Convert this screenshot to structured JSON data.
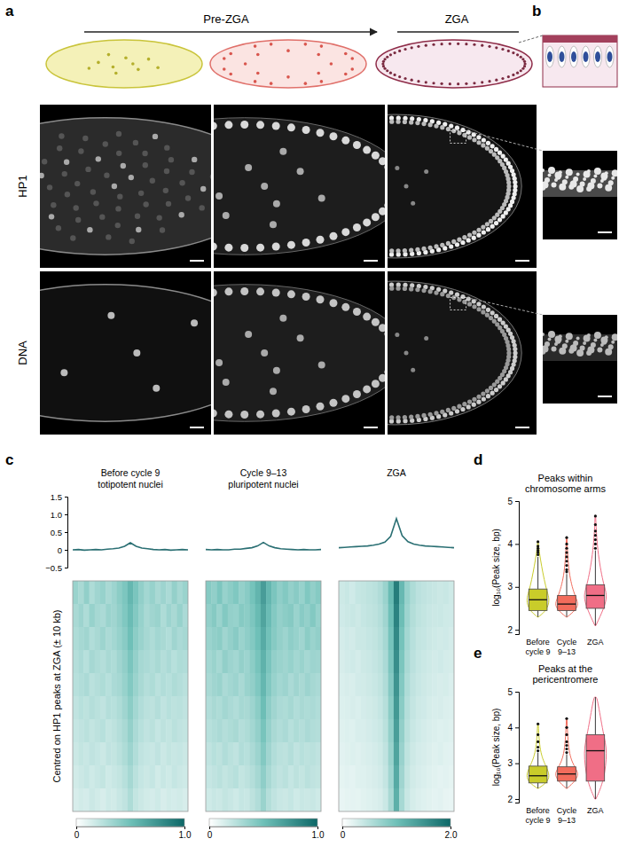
{
  "figure": {
    "panel_labels": [
      "a",
      "b",
      "c",
      "d",
      "e"
    ],
    "stages": [
      "Pre-ZGA",
      "ZGA"
    ],
    "rows": [
      "HP1",
      "DNA"
    ]
  },
  "chart_data": [
    {
      "type": "line",
      "title": "Before cycle 9",
      "subtitle": "totipotent nuclei",
      "color": "#2a6f73",
      "x": [
        -10,
        -9,
        -8,
        -7,
        -6,
        -5,
        -4,
        -3,
        -2,
        -1,
        0,
        1,
        2,
        3,
        4,
        5,
        6,
        7,
        8,
        9,
        10
      ],
      "values": [
        0.0,
        0.01,
        -0.01,
        0.0,
        0.01,
        0.0,
        0.02,
        0.03,
        0.05,
        0.1,
        0.2,
        0.1,
        0.05,
        0.03,
        0.01,
        0.0,
        0.01,
        -0.01,
        0.0,
        0.01,
        0.0
      ],
      "xlim": [
        -10,
        10
      ],
      "ylim": [
        -0.5,
        1.5
      ],
      "yticks": [
        {
          "value": -0.5,
          "label": "−0.5"
        },
        0,
        0.5,
        {
          "value": 1,
          "label": "1.0"
        },
        1.5
      ],
      "tick_labels": "y"
    },
    {
      "type": "line",
      "title": "Cycle 9–13",
      "subtitle": "pluripotent nuclei",
      "color": "#2a6f73",
      "x": [
        -10,
        -9,
        -8,
        -7,
        -6,
        -5,
        -4,
        -3,
        -2,
        -1,
        0,
        1,
        2,
        3,
        4,
        5,
        6,
        7,
        8,
        9,
        10
      ],
      "values": [
        0.01,
        0.0,
        0.01,
        0.0,
        0.0,
        0.02,
        0.02,
        0.04,
        0.06,
        0.11,
        0.21,
        0.11,
        0.06,
        0.03,
        0.02,
        0.01,
        0.0,
        0.01,
        0.0,
        0.0,
        0.01
      ],
      "xlim": [
        -10,
        10
      ],
      "ylim": [
        -0.5,
        1.5
      ],
      "tick_labels": false
    },
    {
      "type": "line",
      "title": "ZGA",
      "color": "#2a6f73",
      "x": [
        -10,
        -9,
        -8,
        -7,
        -6,
        -5,
        -4,
        -3,
        -2,
        -1,
        0,
        1,
        2,
        3,
        4,
        5,
        6,
        7,
        8,
        9,
        10
      ],
      "values": [
        0.06,
        0.07,
        0.08,
        0.09,
        0.1,
        0.11,
        0.13,
        0.16,
        0.22,
        0.38,
        0.88,
        0.4,
        0.23,
        0.16,
        0.13,
        0.11,
        0.1,
        0.09,
        0.08,
        0.07,
        0.06
      ],
      "xlim": [
        -10,
        10
      ],
      "ylim": [
        -0.5,
        1.5
      ],
      "tick_labels": false
    },
    {
      "type": "heatmap",
      "ylabel": "Centred on HP1 peaks at ZGA (± 10 kb)",
      "cells": [
        [
          0.35,
          0.3,
          0.38,
          0.28,
          0.33,
          0.36,
          0.3,
          0.34,
          0.4,
          0.45,
          0.55,
          0.46,
          0.38,
          0.32,
          0.36,
          0.3,
          0.34,
          0.29,
          0.37,
          0.31,
          0.35
        ],
        [
          0.3,
          0.34,
          0.28,
          0.36,
          0.31,
          0.29,
          0.35,
          0.33,
          0.38,
          0.44,
          0.52,
          0.43,
          0.36,
          0.3,
          0.33,
          0.35,
          0.28,
          0.34,
          0.3,
          0.36,
          0.29
        ],
        [
          0.28,
          0.31,
          0.33,
          0.27,
          0.3,
          0.34,
          0.29,
          0.32,
          0.36,
          0.41,
          0.5,
          0.4,
          0.35,
          0.31,
          0.28,
          0.32,
          0.3,
          0.27,
          0.33,
          0.29,
          0.31
        ],
        [
          0.26,
          0.29,
          0.25,
          0.31,
          0.28,
          0.26,
          0.3,
          0.28,
          0.33,
          0.38,
          0.46,
          0.37,
          0.31,
          0.29,
          0.27,
          0.3,
          0.26,
          0.29,
          0.25,
          0.28,
          0.27
        ],
        [
          0.25,
          0.27,
          0.29,
          0.24,
          0.26,
          0.28,
          0.25,
          0.29,
          0.31,
          0.36,
          0.43,
          0.35,
          0.3,
          0.26,
          0.28,
          0.24,
          0.27,
          0.25,
          0.28,
          0.26,
          0.24
        ],
        [
          0.22,
          0.25,
          0.23,
          0.26,
          0.24,
          0.22,
          0.26,
          0.25,
          0.28,
          0.33,
          0.4,
          0.32,
          0.27,
          0.24,
          0.23,
          0.26,
          0.22,
          0.25,
          0.23,
          0.24,
          0.22
        ],
        [
          0.2,
          0.22,
          0.24,
          0.21,
          0.23,
          0.25,
          0.21,
          0.23,
          0.26,
          0.3,
          0.37,
          0.29,
          0.25,
          0.22,
          0.24,
          0.2,
          0.23,
          0.21,
          0.24,
          0.22,
          0.21
        ],
        [
          0.18,
          0.21,
          0.19,
          0.22,
          0.2,
          0.18,
          0.22,
          0.21,
          0.24,
          0.28,
          0.34,
          0.27,
          0.22,
          0.2,
          0.19,
          0.22,
          0.18,
          0.21,
          0.19,
          0.2,
          0.18
        ],
        [
          0.16,
          0.18,
          0.2,
          0.17,
          0.19,
          0.21,
          0.17,
          0.19,
          0.21,
          0.25,
          0.31,
          0.24,
          0.2,
          0.18,
          0.2,
          0.16,
          0.19,
          0.17,
          0.2,
          0.18,
          0.17
        ],
        [
          0.14,
          0.16,
          0.15,
          0.18,
          0.16,
          0.14,
          0.17,
          0.16,
          0.19,
          0.22,
          0.28,
          0.21,
          0.18,
          0.16,
          0.15,
          0.17,
          0.14,
          0.16,
          0.15,
          0.16,
          0.14
        ]
      ],
      "colorbar": {
        "range": [
          0,
          1
        ],
        "ticks": [
          0,
          {
            "value": 1,
            "label": "1.0"
          }
        ]
      }
    },
    {
      "type": "heatmap",
      "cells": [
        [
          0.42,
          0.38,
          0.45,
          0.36,
          0.4,
          0.44,
          0.37,
          0.41,
          0.48,
          0.56,
          0.7,
          0.55,
          0.46,
          0.39,
          0.43,
          0.37,
          0.41,
          0.36,
          0.44,
          0.38,
          0.42
        ],
        [
          0.38,
          0.42,
          0.35,
          0.43,
          0.37,
          0.36,
          0.42,
          0.4,
          0.45,
          0.53,
          0.66,
          0.52,
          0.43,
          0.37,
          0.4,
          0.42,
          0.35,
          0.41,
          0.37,
          0.43,
          0.36
        ],
        [
          0.35,
          0.38,
          0.4,
          0.33,
          0.37,
          0.41,
          0.35,
          0.39,
          0.43,
          0.5,
          0.62,
          0.49,
          0.42,
          0.37,
          0.34,
          0.39,
          0.36,
          0.33,
          0.4,
          0.35,
          0.38
        ],
        [
          0.32,
          0.35,
          0.31,
          0.38,
          0.34,
          0.32,
          0.37,
          0.34,
          0.4,
          0.47,
          0.58,
          0.46,
          0.38,
          0.35,
          0.33,
          0.36,
          0.32,
          0.35,
          0.31,
          0.34,
          0.33
        ],
        [
          0.3,
          0.33,
          0.35,
          0.29,
          0.32,
          0.34,
          0.3,
          0.35,
          0.38,
          0.44,
          0.55,
          0.43,
          0.36,
          0.32,
          0.34,
          0.29,
          0.33,
          0.3,
          0.34,
          0.31,
          0.29
        ],
        [
          0.27,
          0.3,
          0.28,
          0.32,
          0.29,
          0.27,
          0.31,
          0.3,
          0.34,
          0.4,
          0.51,
          0.39,
          0.33,
          0.29,
          0.28,
          0.31,
          0.27,
          0.3,
          0.28,
          0.29,
          0.27
        ],
        [
          0.25,
          0.27,
          0.29,
          0.26,
          0.28,
          0.3,
          0.26,
          0.28,
          0.32,
          0.37,
          0.47,
          0.36,
          0.3,
          0.27,
          0.29,
          0.25,
          0.28,
          0.26,
          0.29,
          0.27,
          0.26
        ],
        [
          0.22,
          0.25,
          0.23,
          0.27,
          0.24,
          0.22,
          0.27,
          0.25,
          0.29,
          0.34,
          0.43,
          0.33,
          0.27,
          0.24,
          0.23,
          0.26,
          0.22,
          0.25,
          0.23,
          0.24,
          0.22
        ],
        [
          0.2,
          0.22,
          0.24,
          0.21,
          0.23,
          0.25,
          0.21,
          0.23,
          0.26,
          0.31,
          0.39,
          0.3,
          0.25,
          0.22,
          0.24,
          0.2,
          0.23,
          0.21,
          0.24,
          0.22,
          0.21
        ],
        [
          0.17,
          0.19,
          0.18,
          0.21,
          0.19,
          0.17,
          0.2,
          0.19,
          0.23,
          0.27,
          0.35,
          0.26,
          0.22,
          0.19,
          0.18,
          0.2,
          0.17,
          0.19,
          0.18,
          0.19,
          0.17
        ]
      ],
      "colorbar": {
        "range": [
          0,
          1
        ],
        "ticks": [
          0,
          {
            "value": 1,
            "label": "1.0"
          }
        ]
      }
    },
    {
      "type": "heatmap",
      "cells": [
        [
          0.35,
          0.38,
          0.33,
          0.4,
          0.42,
          0.45,
          0.48,
          0.55,
          0.7,
          1.05,
          1.75,
          1.08,
          0.72,
          0.56,
          0.47,
          0.44,
          0.41,
          0.39,
          0.36,
          0.38,
          0.34
        ],
        [
          0.33,
          0.36,
          0.38,
          0.35,
          0.4,
          0.43,
          0.46,
          0.52,
          0.66,
          1.0,
          1.68,
          1.02,
          0.68,
          0.53,
          0.45,
          0.42,
          0.38,
          0.36,
          0.37,
          0.34,
          0.33
        ],
        [
          0.3,
          0.33,
          0.31,
          0.36,
          0.37,
          0.4,
          0.43,
          0.49,
          0.62,
          0.95,
          1.62,
          0.96,
          0.64,
          0.5,
          0.42,
          0.4,
          0.36,
          0.34,
          0.32,
          0.33,
          0.3
        ],
        [
          0.28,
          0.31,
          0.33,
          0.3,
          0.35,
          0.37,
          0.41,
          0.46,
          0.58,
          0.9,
          1.56,
          0.91,
          0.6,
          0.47,
          0.4,
          0.37,
          0.34,
          0.31,
          0.33,
          0.3,
          0.29
        ],
        [
          0.26,
          0.28,
          0.27,
          0.31,
          0.32,
          0.35,
          0.38,
          0.43,
          0.55,
          0.85,
          1.5,
          0.86,
          0.56,
          0.44,
          0.38,
          0.35,
          0.32,
          0.3,
          0.28,
          0.29,
          0.26
        ],
        [
          0.24,
          0.26,
          0.28,
          0.26,
          0.3,
          0.32,
          0.35,
          0.4,
          0.51,
          0.8,
          1.44,
          0.81,
          0.52,
          0.41,
          0.35,
          0.33,
          0.29,
          0.27,
          0.28,
          0.25,
          0.24
        ],
        [
          0.22,
          0.24,
          0.23,
          0.27,
          0.27,
          0.3,
          0.33,
          0.37,
          0.48,
          0.75,
          1.38,
          0.76,
          0.49,
          0.38,
          0.33,
          0.3,
          0.27,
          0.25,
          0.23,
          0.24,
          0.22
        ],
        [
          0.2,
          0.22,
          0.24,
          0.22,
          0.25,
          0.27,
          0.3,
          0.34,
          0.44,
          0.7,
          1.32,
          0.71,
          0.45,
          0.35,
          0.3,
          0.28,
          0.25,
          0.22,
          0.24,
          0.21,
          0.2
        ],
        [
          0.18,
          0.2,
          0.19,
          0.22,
          0.23,
          0.25,
          0.28,
          0.31,
          0.41,
          0.65,
          1.25,
          0.66,
          0.42,
          0.32,
          0.28,
          0.26,
          0.23,
          0.21,
          0.19,
          0.2,
          0.18
        ],
        [
          0.16,
          0.18,
          0.19,
          0.18,
          0.21,
          0.23,
          0.25,
          0.28,
          0.37,
          0.6,
          1.18,
          0.61,
          0.38,
          0.29,
          0.25,
          0.23,
          0.21,
          0.19,
          0.2,
          0.17,
          0.16
        ]
      ],
      "colorbar": {
        "range": [
          0,
          2
        ],
        "ticks": [
          0,
          {
            "value": 2,
            "label": "2.0"
          }
        ]
      }
    },
    {
      "type": "box",
      "title": "Peaks within chromosome arms",
      "ylabel": "log₁₀(Peak size, bp)",
      "categories": [
        "Before cycle 9",
        "Cycle 9–13",
        "ZGA"
      ],
      "colors": [
        "#c9cc2a",
        "#f26c5c",
        "#f06e86"
      ],
      "stats": [
        {
          "min": 2.3,
          "q1": 2.45,
          "median": 2.7,
          "q3": 2.95,
          "max": 3.7,
          "outliers": [
            3.75,
            3.8,
            3.85,
            3.9,
            3.95,
            4.05
          ]
        },
        {
          "min": 2.3,
          "q1": 2.45,
          "median": 2.6,
          "q3": 2.8,
          "max": 3.3,
          "outliers": [
            3.35,
            3.4,
            3.5,
            3.6,
            3.7,
            3.8,
            3.9,
            4.0,
            4.15
          ]
        },
        {
          "min": 2.1,
          "q1": 2.5,
          "median": 2.8,
          "q3": 3.05,
          "max": 3.85,
          "outliers": [
            3.9,
            4.0,
            4.1,
            4.2,
            4.3,
            4.45,
            4.65
          ]
        }
      ],
      "ylim": [
        1.9,
        5
      ],
      "yticks": [
        2,
        3,
        4,
        5
      ]
    },
    {
      "type": "box",
      "title": "Peaks at the pericentromere",
      "ylabel": "log₁₀(Peak size, bp)",
      "categories": [
        "Before cycle 9",
        "Cycle 9–13",
        "ZGA"
      ],
      "colors": [
        "#c9cc2a",
        "#f26c5c",
        "#f06e86"
      ],
      "stats": [
        {
          "min": 2.3,
          "q1": 2.45,
          "median": 2.65,
          "q3": 2.92,
          "max": 3.3,
          "outliers": [
            3.35,
            3.45,
            3.6,
            3.8,
            4.1
          ]
        },
        {
          "min": 2.3,
          "q1": 2.5,
          "median": 2.7,
          "q3": 2.9,
          "max": 3.25,
          "outliers": [
            3.3,
            3.4,
            3.5,
            3.6,
            3.8,
            4.0,
            4.25
          ]
        },
        {
          "min": 2.0,
          "q1": 2.5,
          "median": 3.35,
          "q3": 3.8,
          "max": 4.85,
          "outliers": []
        }
      ],
      "ylim": [
        1.9,
        5
      ],
      "yticks": [
        2,
        3,
        4,
        5
      ]
    }
  ]
}
